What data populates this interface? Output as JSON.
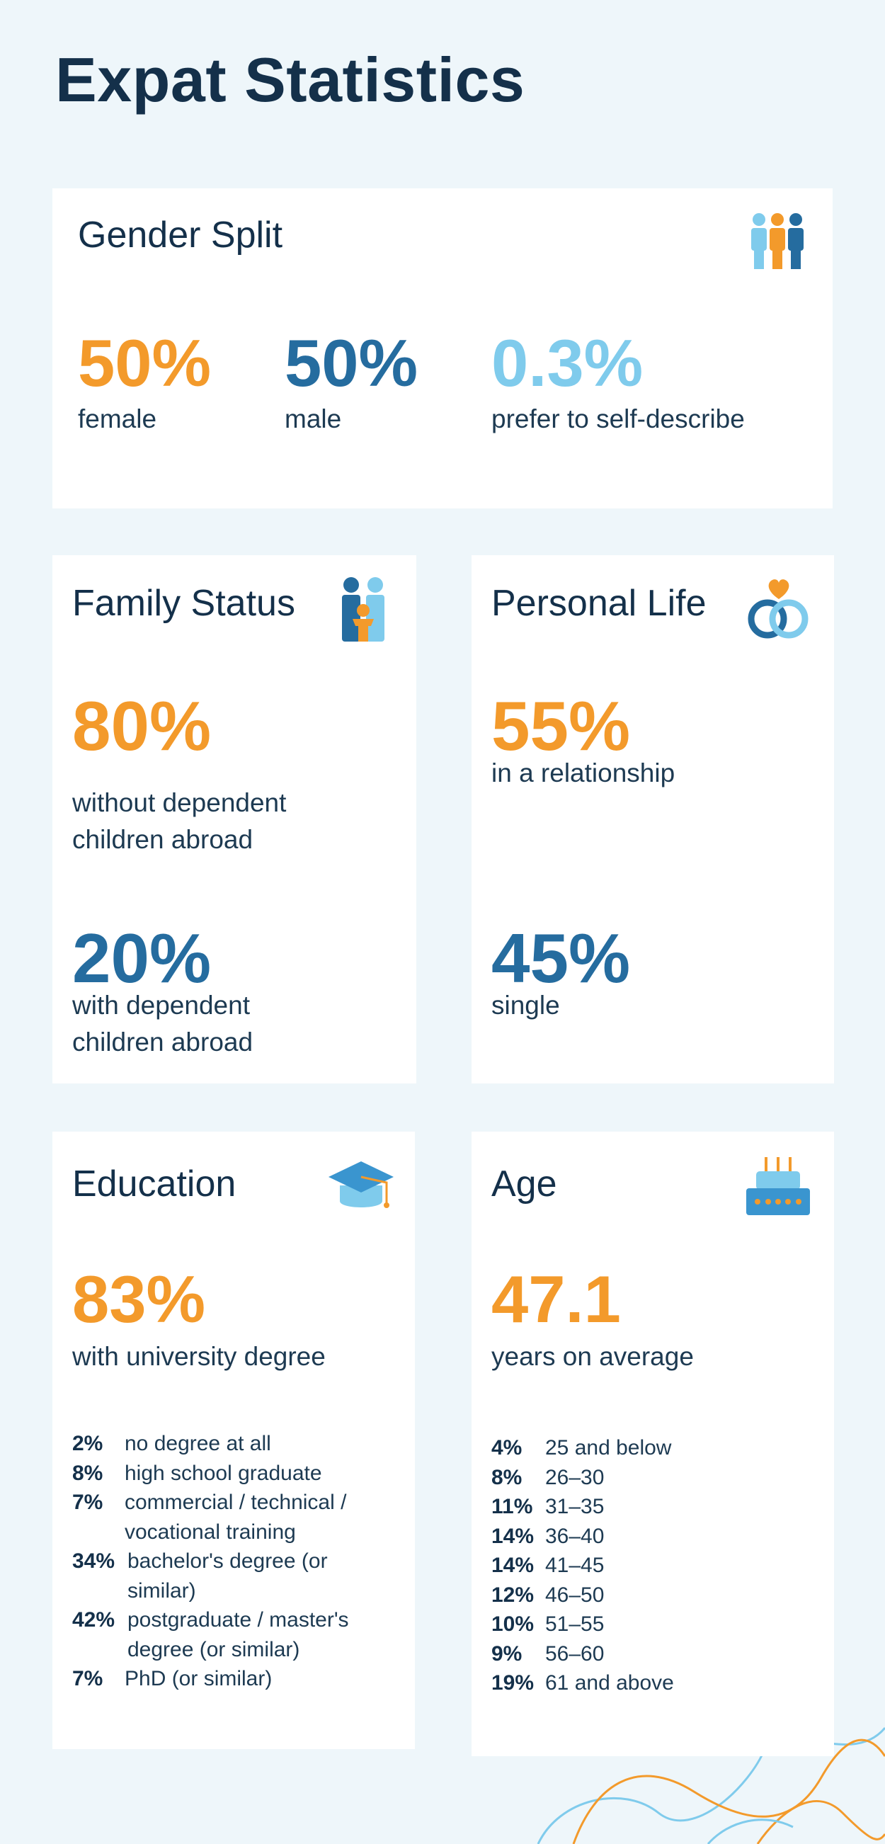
{
  "title": "Expat Statistics",
  "colors": {
    "orange": "#f39a2b",
    "dark_blue": "#256c9f",
    "light_blue": "#7fcbec",
    "text": "#14304a",
    "background": "#eef6fa"
  },
  "gender": {
    "title": "Gender Split",
    "icon": "people-group-icon",
    "stats": [
      {
        "value": "50%",
        "label": "female"
      },
      {
        "value": "50%",
        "label": "male"
      },
      {
        "value": "0.3%",
        "label": "prefer to self-describe"
      }
    ]
  },
  "family": {
    "title": "Family Status",
    "icon": "family-icon",
    "stats": [
      {
        "value": "80%",
        "label_line1": "without dependent",
        "label_line2": "children abroad"
      },
      {
        "value": "20%",
        "label_line1": "with dependent",
        "label_line2": "children abroad"
      }
    ]
  },
  "personal": {
    "title": "Personal Life",
    "icon": "rings-heart-icon",
    "stats": [
      {
        "value": "55%",
        "label": "in a relationship"
      },
      {
        "value": "45%",
        "label": "single"
      }
    ]
  },
  "education": {
    "title": "Education",
    "icon": "graduation-cap-icon",
    "headline": {
      "value": "83%",
      "label": "with university degree"
    },
    "breakdown": [
      {
        "pct": "2%",
        "lines": [
          "no degree at all"
        ]
      },
      {
        "pct": "8%",
        "lines": [
          "high school graduate"
        ]
      },
      {
        "pct": "7%",
        "lines": [
          "commercial / technical /",
          "vocational training"
        ]
      },
      {
        "pct": "34%",
        "lines": [
          "bachelor's degree (or",
          "similar)"
        ]
      },
      {
        "pct": "42%",
        "lines": [
          "postgraduate / master's",
          "degree (or similar)"
        ]
      },
      {
        "pct": "7%",
        "lines": [
          "PhD (or similar)"
        ]
      }
    ]
  },
  "age": {
    "title": "Age",
    "icon": "birthday-cake-icon",
    "headline": {
      "value": "47.1",
      "label": "years on average"
    },
    "breakdown": [
      {
        "pct": "4%",
        "lines": [
          "25 and below"
        ]
      },
      {
        "pct": "8%",
        "lines": [
          "26–30"
        ]
      },
      {
        "pct": "11%",
        "lines": [
          "31–35"
        ]
      },
      {
        "pct": "14%",
        "lines": [
          "36–40"
        ]
      },
      {
        "pct": "14%",
        "lines": [
          "41–45"
        ]
      },
      {
        "pct": "12%",
        "lines": [
          "46–50"
        ]
      },
      {
        "pct": "10%",
        "lines": [
          "51–55"
        ]
      },
      {
        "pct": "9%",
        "lines": [
          "56–60"
        ]
      },
      {
        "pct": "19%",
        "lines": [
          "61 and above"
        ]
      }
    ]
  }
}
